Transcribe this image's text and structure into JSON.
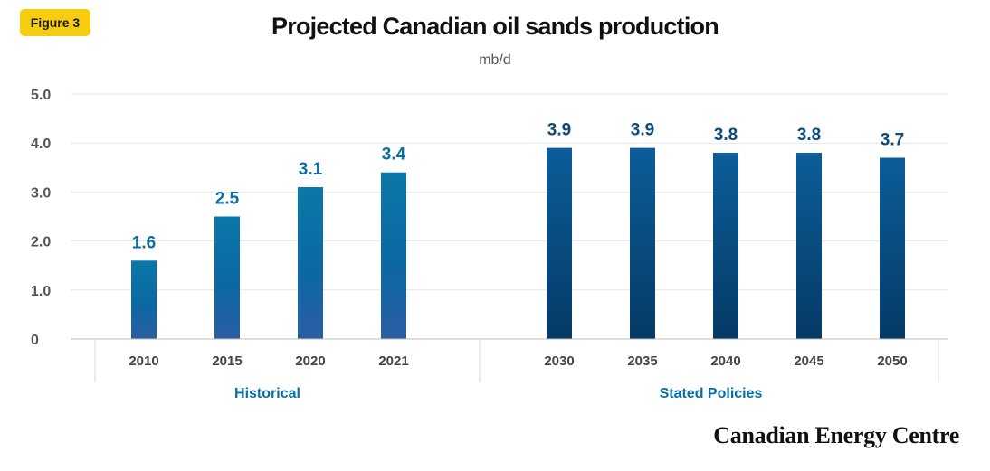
{
  "figure_label": "Figure 3",
  "brand": "Canadian Energy Centre",
  "chart_data": {
    "type": "bar",
    "title": "Projected Canadian oil sands production",
    "subtitle": "mb/d",
    "ylim": [
      0,
      5
    ],
    "yticks": [
      "0",
      "1.0",
      "2.0",
      "3.0",
      "4.0",
      "5.0"
    ],
    "grid": true,
    "groups": [
      {
        "name": "Historical",
        "categories": [
          "2010",
          "2015",
          "2020",
          "2021"
        ],
        "values": [
          1.6,
          2.5,
          3.1,
          3.4
        ],
        "color": "#0b6fa3"
      },
      {
        "name": "Stated Policies",
        "categories": [
          "2030",
          "2035",
          "2040",
          "2045",
          "2050"
        ],
        "values": [
          3.9,
          3.9,
          3.8,
          3.8,
          3.7
        ],
        "color": "#0b4f85"
      }
    ],
    "colors": {
      "historical_top": "#0a78a8",
      "historical_bottom": "#2a5ea3",
      "policy_top": "#0b5d99",
      "policy_bottom": "#053a66",
      "label_historical": "#0b6fa3",
      "label_policy": "#0b4a7a",
      "group_label": "#0b6fa3"
    }
  }
}
